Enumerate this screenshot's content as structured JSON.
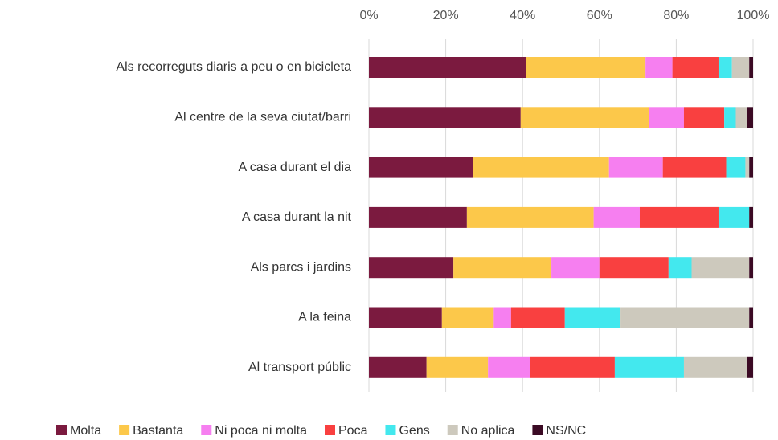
{
  "chart_data": {
    "type": "stacked-bar-horizontal",
    "categories": [
      "Als recorreguts diaris a peu o en bicicleta",
      "Al centre de la seva ciutat/barri",
      "A casa durant el dia",
      "A casa durant la nit",
      "Als parcs i jardins",
      "A la feina",
      "Al transport públic"
    ],
    "series": [
      {
        "name": "Molta",
        "color": "#7b1a3f",
        "values": [
          41,
          39.5,
          27,
          25.5,
          22,
          19,
          15
        ]
      },
      {
        "name": "Bastanta",
        "color": "#fcc84a",
        "values": [
          31,
          33.5,
          35.5,
          33,
          25.5,
          13.5,
          16
        ]
      },
      {
        "name": "Ni poca ni molta",
        "color": "#f67ff0",
        "values": [
          7,
          9,
          14,
          12,
          12.5,
          4.5,
          11
        ]
      },
      {
        "name": "Poca",
        "color": "#f94040",
        "values": [
          12,
          10.5,
          16.5,
          20.5,
          18,
          14,
          22
        ]
      },
      {
        "name": "Gens",
        "color": "#43e8ee",
        "values": [
          3.5,
          3,
          5,
          8,
          6,
          14.5,
          18
        ]
      },
      {
        "name": "No aplica",
        "color": "#cdc9bd",
        "values": [
          4.5,
          3,
          1,
          0,
          15,
          33.5,
          16.5
        ]
      },
      {
        "name": "NS/NC",
        "color": "#3b0a24",
        "values": [
          1,
          1.5,
          1,
          1,
          1,
          1,
          1.5
        ]
      }
    ],
    "xlim": [
      0,
      100
    ],
    "xticks": [
      {
        "value": 0,
        "label": "0%"
      },
      {
        "value": 20,
        "label": "20%"
      },
      {
        "value": 40,
        "label": "40%"
      },
      {
        "value": 60,
        "label": "60%"
      },
      {
        "value": 80,
        "label": "80%"
      },
      {
        "value": 100,
        "label": "100%"
      }
    ],
    "grid": true,
    "legend": "bottom"
  }
}
